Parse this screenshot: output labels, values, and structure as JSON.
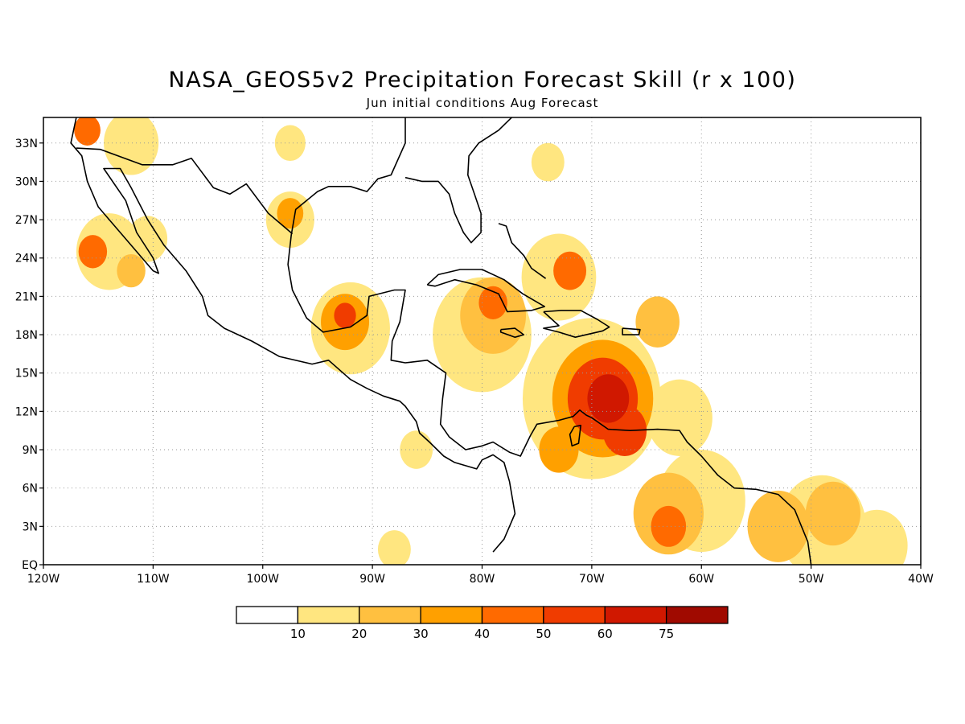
{
  "title": "NASA_GEOS5v2 Precipitation Forecast Skill (r x 100)",
  "subtitle": "Jun initial conditions  Aug Forecast",
  "map": {
    "lon_range": [
      -120,
      -40
    ],
    "lat_range": [
      0,
      35
    ],
    "lat_ticks": [
      {
        "lat": 33,
        "label": "33N"
      },
      {
        "lat": 30,
        "label": "30N"
      },
      {
        "lat": 27,
        "label": "27N"
      },
      {
        "lat": 24,
        "label": "24N"
      },
      {
        "lat": 21,
        "label": "21N"
      },
      {
        "lat": 18,
        "label": "18N"
      },
      {
        "lat": 15,
        "label": "15N"
      },
      {
        "lat": 12,
        "label": "12N"
      },
      {
        "lat": 9,
        "label": "9N"
      },
      {
        "lat": 6,
        "label": "6N"
      },
      {
        "lat": 3,
        "label": "3N"
      },
      {
        "lat": 0,
        "label": "EQ"
      }
    ],
    "lon_ticks": [
      {
        "lon": -120,
        "label": "120W"
      },
      {
        "lon": -110,
        "label": "110W"
      },
      {
        "lon": -100,
        "label": "100W"
      },
      {
        "lon": -90,
        "label": "90W"
      },
      {
        "lon": -80,
        "label": "80W"
      },
      {
        "lon": -70,
        "label": "70W"
      },
      {
        "lon": -60,
        "label": "60W"
      },
      {
        "lon": -50,
        "label": "50W"
      },
      {
        "lon": -40,
        "label": "40W"
      }
    ],
    "grid": true
  },
  "colorbar": {
    "levels": [
      "10",
      "20",
      "30",
      "40",
      "50",
      "60",
      "75"
    ],
    "colors": [
      "#ffffff",
      "#ffe680",
      "#ffc040",
      "#ffa000",
      "#ff6a00",
      "#f03c00",
      "#d01800",
      "#a00a00"
    ]
  },
  "skill_regions": [
    {
      "lon": -116,
      "lat": 34,
      "level": 4,
      "r": 1.2
    },
    {
      "lon": -112,
      "lat": 33,
      "level": 1,
      "r": 2.5
    },
    {
      "lon": -115.5,
      "lat": 24.5,
      "level": 4,
      "r": 1.3
    },
    {
      "lon": -114,
      "lat": 24.5,
      "level": 1,
      "r": 3.0
    },
    {
      "lon": -112,
      "lat": 23,
      "level": 2,
      "r": 1.3
    },
    {
      "lon": -110.5,
      "lat": 25.5,
      "level": 1,
      "r": 1.8
    },
    {
      "lon": -97.5,
      "lat": 27.5,
      "level": 3,
      "r": 1.2
    },
    {
      "lon": -97.5,
      "lat": 27,
      "level": 1,
      "r": 2.2
    },
    {
      "lon": -97.5,
      "lat": 33,
      "level": 1,
      "r": 1.4
    },
    {
      "lon": -74,
      "lat": 31.5,
      "level": 1,
      "r": 1.5
    },
    {
      "lon": -92.5,
      "lat": 19.5,
      "level": 5,
      "r": 1.0
    },
    {
      "lon": -92.5,
      "lat": 19,
      "level": 3,
      "r": 2.2
    },
    {
      "lon": -92,
      "lat": 18.5,
      "level": 1,
      "r": 3.6
    },
    {
      "lon": -79,
      "lat": 20.5,
      "level": 4,
      "r": 1.3
    },
    {
      "lon": -79,
      "lat": 19.5,
      "level": 2,
      "r": 3.0
    },
    {
      "lon": -80,
      "lat": 18,
      "level": 1,
      "r": 4.5
    },
    {
      "lon": -72,
      "lat": 23,
      "level": 4,
      "r": 1.5
    },
    {
      "lon": -73,
      "lat": 22.5,
      "level": 1,
      "r": 3.4
    },
    {
      "lon": -68.5,
      "lat": 13,
      "level": 6,
      "r": 1.9
    },
    {
      "lon": -69,
      "lat": 13,
      "level": 5,
      "r": 3.2
    },
    {
      "lon": -69,
      "lat": 13,
      "level": 3,
      "r": 4.6
    },
    {
      "lon": -70,
      "lat": 13,
      "level": 1,
      "r": 6.3
    },
    {
      "lon": -67,
      "lat": 10.5,
      "level": 5,
      "r": 2.0
    },
    {
      "lon": -64,
      "lat": 19,
      "level": 2,
      "r": 2.0
    },
    {
      "lon": -62,
      "lat": 11.5,
      "level": 1,
      "r": 3.0
    },
    {
      "lon": -73,
      "lat": 9,
      "level": 3,
      "r": 1.8
    },
    {
      "lon": -63,
      "lat": 3,
      "level": 4,
      "r": 1.6
    },
    {
      "lon": -63,
      "lat": 4,
      "level": 2,
      "r": 3.2
    },
    {
      "lon": -60,
      "lat": 5,
      "level": 1,
      "r": 4.0
    },
    {
      "lon": -53,
      "lat": 3,
      "level": 2,
      "r": 2.8
    },
    {
      "lon": -48,
      "lat": 4,
      "level": 2,
      "r": 2.5
    },
    {
      "lon": -49,
      "lat": 3,
      "level": 1,
      "r": 4.0
    },
    {
      "lon": -44,
      "lat": 1.5,
      "level": 1,
      "r": 2.8
    },
    {
      "lon": -88,
      "lat": 1.2,
      "level": 1,
      "r": 1.5
    },
    {
      "lon": -86,
      "lat": 9,
      "level": 1,
      "r": 1.5
    }
  ]
}
